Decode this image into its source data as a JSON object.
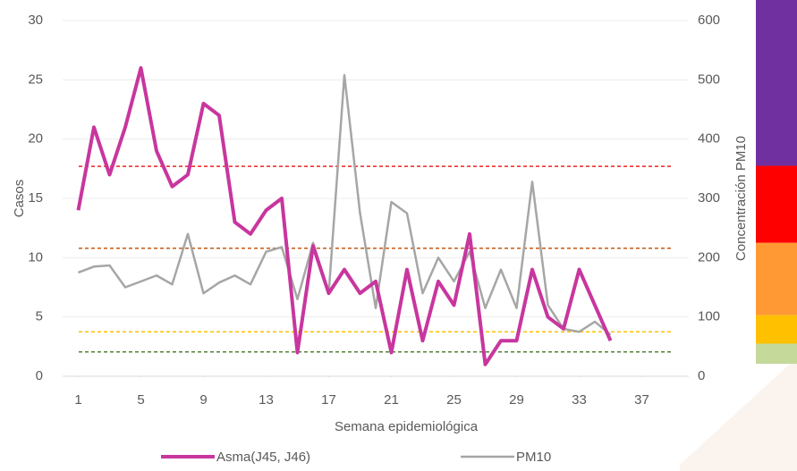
{
  "chart_data": {
    "type": "line",
    "x_label": "Semana epidemiológica",
    "y_label": "Casos",
    "y2_label": "Concentración PM10",
    "x": [
      1,
      2,
      3,
      4,
      5,
      6,
      7,
      8,
      9,
      10,
      11,
      12,
      13,
      14,
      15,
      16,
      17,
      18,
      19,
      20,
      21,
      22,
      23,
      24,
      25,
      26,
      27,
      28,
      29,
      30,
      31,
      32,
      33,
      34,
      35
    ],
    "xlim": [
      0,
      40
    ],
    "xticks": [
      1,
      5,
      9,
      13,
      17,
      21,
      25,
      29,
      33,
      37
    ],
    "ylim": [
      0,
      30
    ],
    "yticks": [
      0,
      5,
      10,
      15,
      20,
      25,
      30
    ],
    "y2lim": [
      0,
      600
    ],
    "y2ticks": [
      0,
      100,
      200,
      300,
      400,
      500,
      600
    ],
    "legend": "bottom",
    "series": [
      {
        "name": "Asma(J45, J46)",
        "color": "#c8369e",
        "values": [
          14,
          21,
          17,
          21,
          26,
          19,
          16,
          17,
          23,
          22,
          13,
          12,
          14,
          15,
          2,
          11,
          7,
          9,
          7,
          8,
          2,
          9,
          3,
          8,
          6,
          12,
          1,
          3,
          3,
          9,
          5,
          4,
          9,
          6,
          3
        ]
      },
      {
        "name": "PM10",
        "color": "#a6a6a6",
        "axis": "y2",
        "values": [
          175,
          185,
          187,
          150,
          160,
          170,
          155,
          240,
          140,
          158,
          170,
          155,
          210,
          218,
          130,
          225,
          140,
          508,
          275,
          115,
          294,
          275,
          140,
          200,
          160,
          210,
          115,
          180,
          115,
          328,
          120,
          80,
          75,
          92,
          70
        ]
      }
    ],
    "thresholds": [
      {
        "value": 354,
        "color": "#ee2222"
      },
      {
        "value": 216,
        "color": "#c55a11"
      },
      {
        "value": 75,
        "color": "#ffc000"
      },
      {
        "value": 41,
        "color": "#548235"
      }
    ],
    "bands": [
      {
        "from": 355,
        "to": 635,
        "color": "#7030a0"
      },
      {
        "from": 225,
        "to": 355,
        "color": "#ff0000"
      },
      {
        "from": 103,
        "to": 225,
        "color": "#ff9933"
      },
      {
        "from": 55,
        "to": 103,
        "color": "#ffc000"
      },
      {
        "from": 21,
        "to": 55,
        "color": "#c5d99a"
      }
    ]
  }
}
